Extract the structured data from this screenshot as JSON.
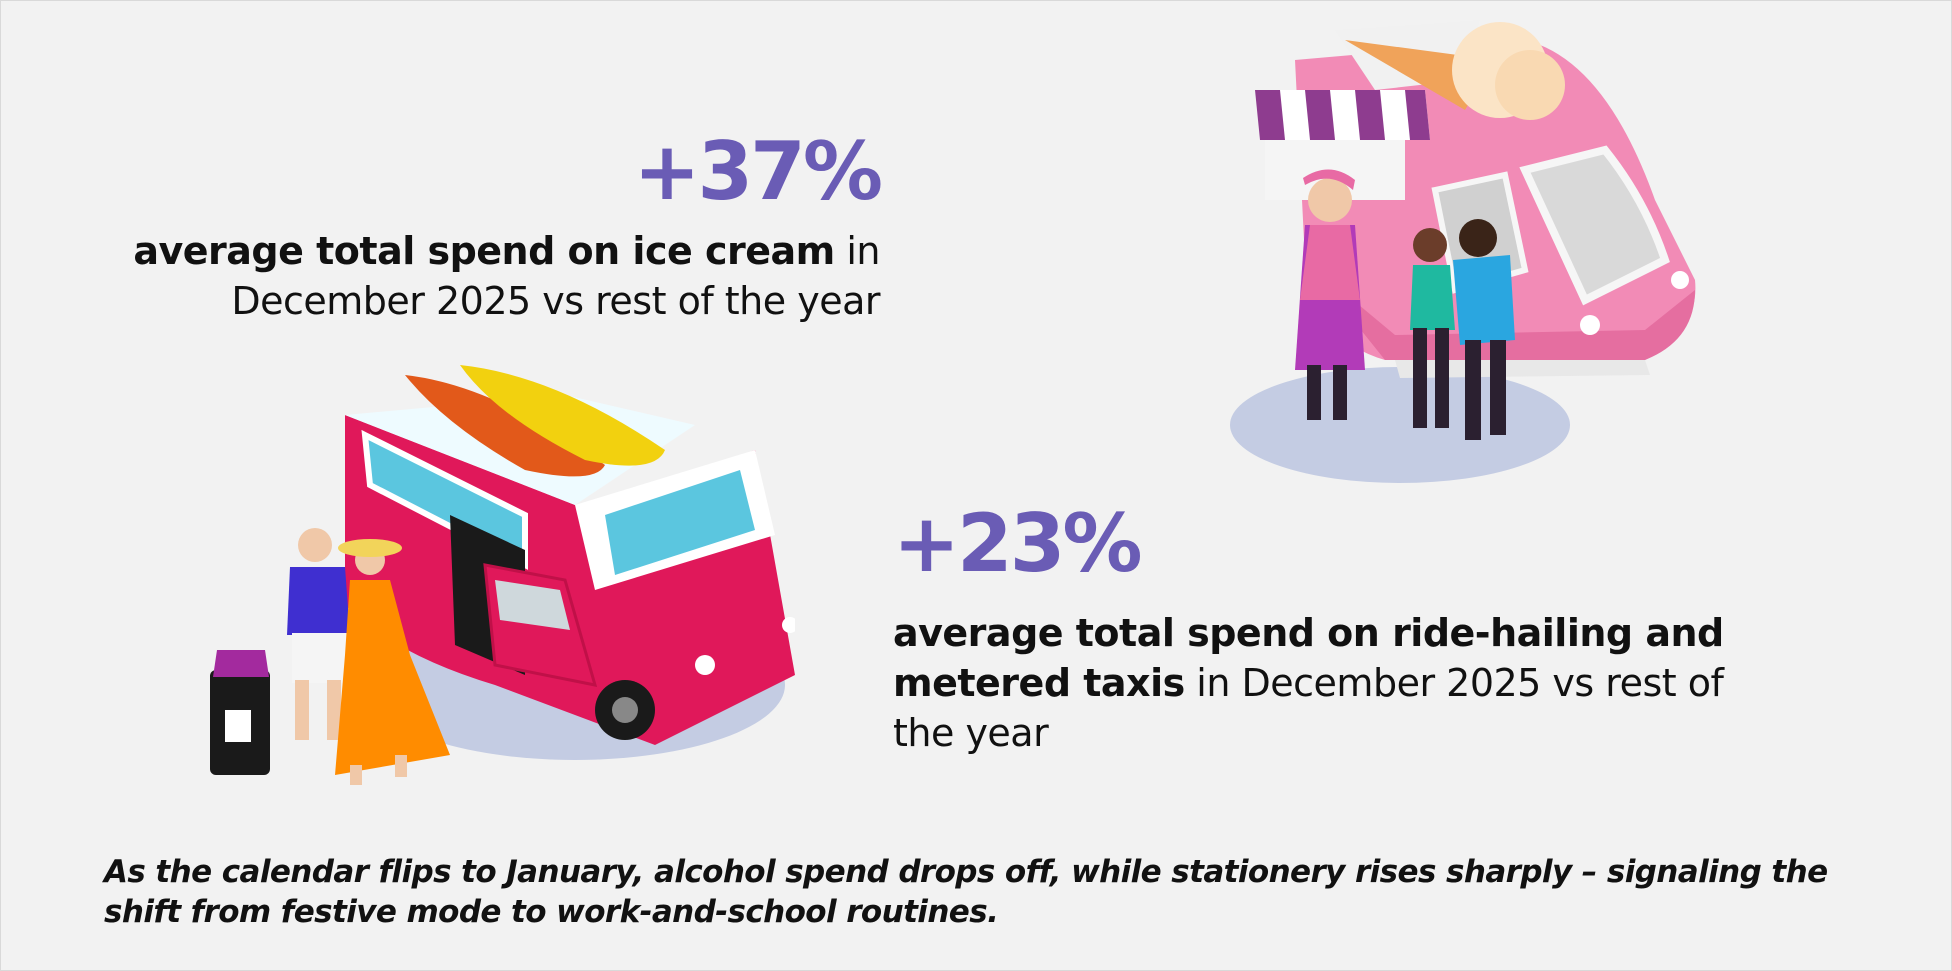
{
  "stats": [
    {
      "percent": "+37%",
      "bold_text": "average total spend on ice cream",
      "rest_text": " in December 2025 vs rest of the year"
    },
    {
      "percent": "+23%",
      "bold_text": "average total spend on ride-hailing and metered taxis",
      "rest_text": " in December 2025 vs rest of the year"
    }
  ],
  "footnote": "As the calendar flips to January, alcohol spend drops off, while stationery rises sharply – signaling the shift from festive mode to work-and-school routines.",
  "colors": {
    "accent_purple": "#6a5cb5",
    "text": "#111111",
    "background": "#f2f2f2"
  },
  "illustrations": [
    "ice-cream-truck-illustration",
    "camper-van-travelers-illustration"
  ]
}
